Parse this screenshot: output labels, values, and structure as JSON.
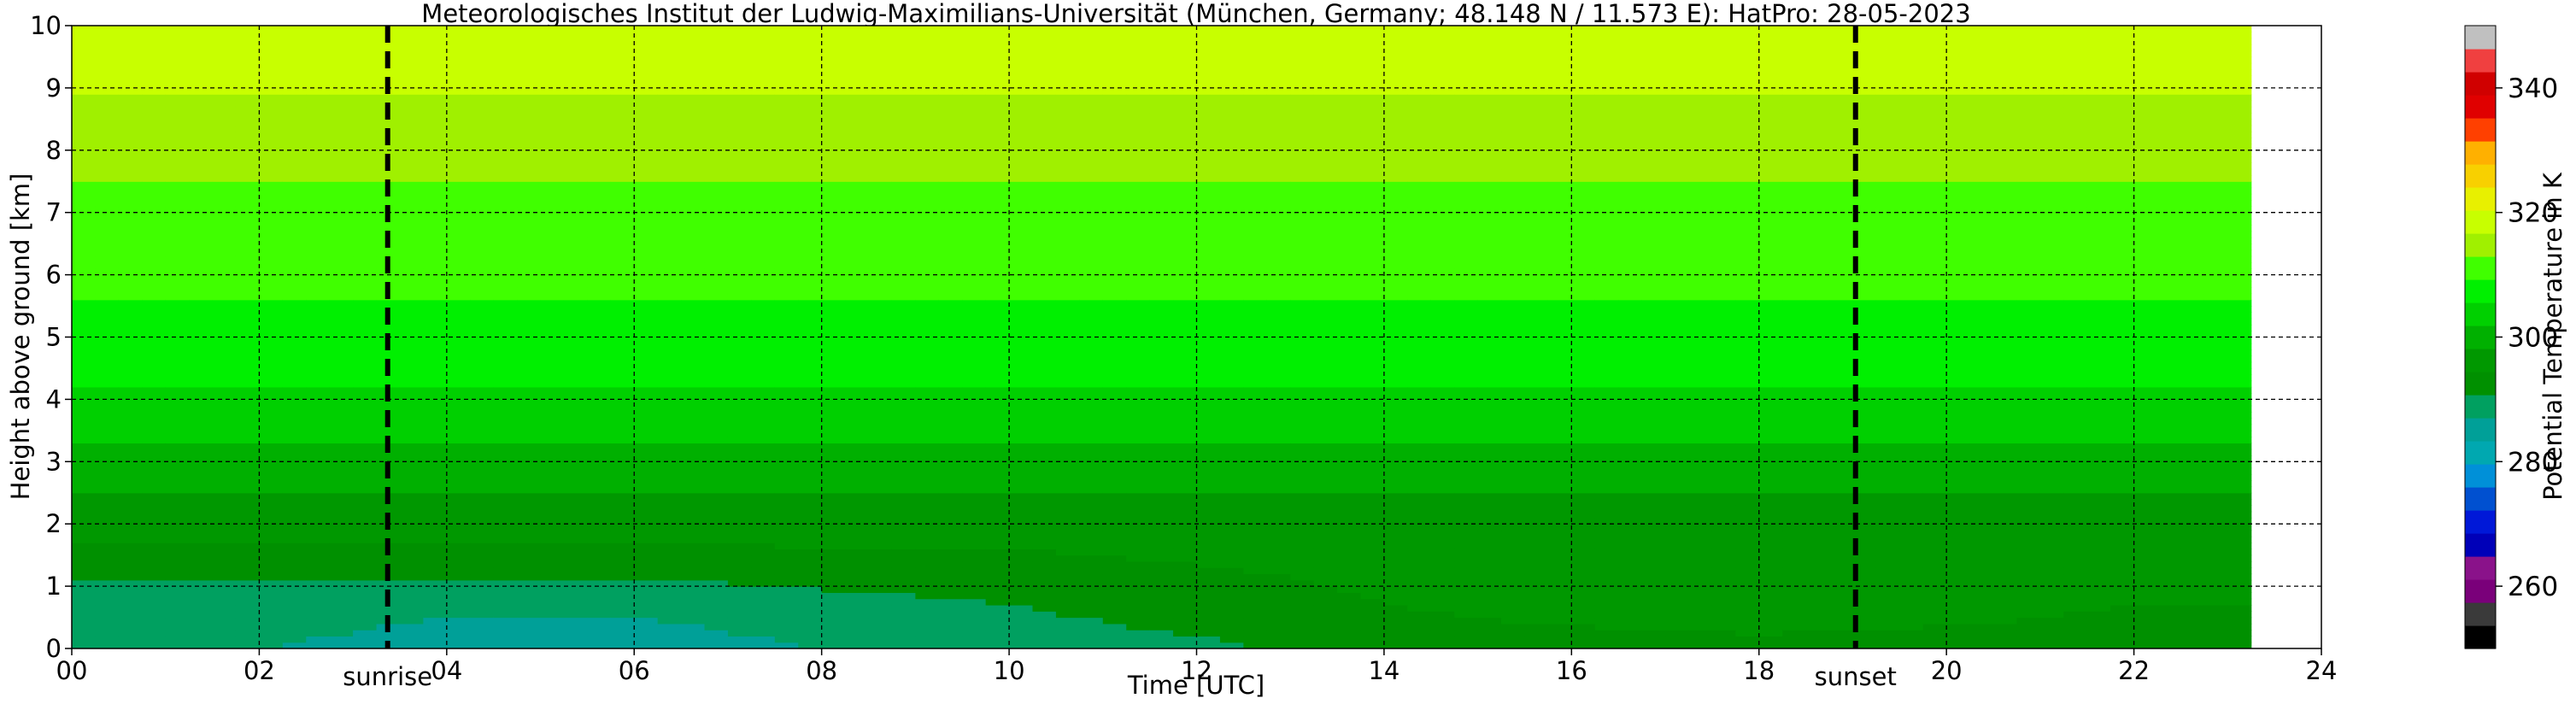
{
  "chart_data": {
    "type": "heatmap",
    "title": "Meteorologisches Institut der Ludwig-Maximilians-Universität (München, Germany; 48.148 N / 11.573 E):    HatPro: 28-05-2023",
    "xlabel": "Time [UTC]",
    "ylabel": "Height above ground [km]",
    "colorbar_label": "Potential Temperature in K",
    "xlim": [
      0,
      24
    ],
    "ylim": [
      0,
      10
    ],
    "x_ticks": [
      0,
      2,
      4,
      6,
      8,
      10,
      12,
      14,
      16,
      18,
      20,
      22,
      24
    ],
    "x_tick_labels": [
      "00",
      "02",
      "04",
      "06",
      "08",
      "10",
      "12",
      "14",
      "16",
      "18",
      "20",
      "22",
      "24"
    ],
    "y_ticks": [
      0,
      1,
      2,
      3,
      4,
      5,
      6,
      7,
      8,
      9,
      10
    ],
    "y_tick_labels": [
      "0",
      "1",
      "2",
      "3",
      "4",
      "5",
      "6",
      "7",
      "8",
      "9",
      "10"
    ],
    "colorbar_range": [
      250,
      350
    ],
    "colorbar_ticks": [
      260,
      280,
      300,
      320,
      340
    ],
    "colorbar_tick_labels": [
      "260",
      "280",
      "300",
      "320",
      "340"
    ],
    "colorbar_colors": [
      "#000000",
      "#3a3a3a",
      "#7a007a",
      "#8a128a",
      "#0000b8",
      "#0018d8",
      "#0050d0",
      "#0090d8",
      "#00a8b0",
      "#00a098",
      "#00a060",
      "#009000",
      "#009800",
      "#00b000",
      "#00d000",
      "#00f000",
      "#40ff00",
      "#a0f000",
      "#c8ff00",
      "#e8f000",
      "#f8d000",
      "#ffb000",
      "#ff4000",
      "#e00000",
      "#d00000",
      "#f04040",
      "#c0c0c0"
    ],
    "grid": true,
    "annotations": [
      {
        "text": "sunrise",
        "x": 3.37
      },
      {
        "text": "sunset",
        "x": 19.03
      }
    ],
    "data_end_time": 23.25,
    "heights_km": [
      0.0,
      0.5,
      1.0,
      1.5,
      2.0,
      2.5,
      3.0,
      3.5,
      4.0,
      5.0,
      6.0,
      7.0,
      8.0,
      8.5,
      9.0,
      9.5,
      10.0
    ],
    "times_utc": [
      0,
      2,
      4,
      6,
      8,
      10,
      12,
      14,
      16,
      18,
      20,
      22,
      23.25
    ],
    "theta_K": [
      [
        287,
        288,
        290,
        293,
        296,
        298,
        300,
        303,
        305,
        308,
        310,
        312,
        314,
        315,
        317,
        318,
        319
      ],
      [
        287,
        288,
        290,
        293,
        296,
        298,
        300,
        303,
        305,
        308,
        310,
        312,
        314,
        315,
        317,
        318,
        319
      ],
      [
        286,
        287,
        290,
        293,
        296,
        298,
        300,
        303,
        305,
        308,
        310,
        312,
        314,
        315,
        317,
        318,
        319
      ],
      [
        286,
        287,
        290,
        293,
        296,
        298,
        300,
        303,
        305,
        308,
        310,
        312,
        314,
        315,
        317,
        318,
        319
      ],
      [
        287,
        288,
        291,
        294,
        296,
        298,
        300,
        303,
        305,
        308,
        310,
        312,
        314,
        315,
        317,
        318,
        319
      ],
      [
        288,
        290,
        292,
        294,
        296,
        298,
        300,
        303,
        305,
        308,
        310,
        312,
        314,
        315,
        317,
        318,
        319
      ],
      [
        290,
        292,
        293,
        295,
        296,
        298,
        300,
        303,
        305,
        308,
        310,
        312,
        314,
        315,
        317,
        318,
        319
      ],
      [
        292,
        294,
        295,
        296,
        297,
        298,
        300,
        303,
        305,
        308,
        310,
        312,
        314,
        315,
        317,
        318,
        319
      ],
      [
        293,
        295,
        296,
        296,
        297,
        298,
        300,
        303,
        305,
        308,
        310,
        312,
        314,
        315,
        317,
        318,
        319
      ],
      [
        294,
        295,
        296,
        296,
        297,
        298,
        300,
        303,
        305,
        308,
        310,
        312,
        314,
        315,
        317,
        318,
        319
      ],
      [
        293,
        295,
        296,
        296,
        297,
        298,
        300,
        303,
        305,
        308,
        310,
        312,
        314,
        315,
        317,
        318,
        319
      ],
      [
        292,
        294,
        295,
        296,
        297,
        298,
        300,
        303,
        305,
        308,
        310,
        312,
        314,
        315,
        317,
        318,
        319
      ],
      [
        292,
        294,
        295,
        296,
        297,
        298,
        300,
        303,
        305,
        308,
        310,
        312,
        314,
        315,
        317,
        318,
        319
      ]
    ]
  }
}
